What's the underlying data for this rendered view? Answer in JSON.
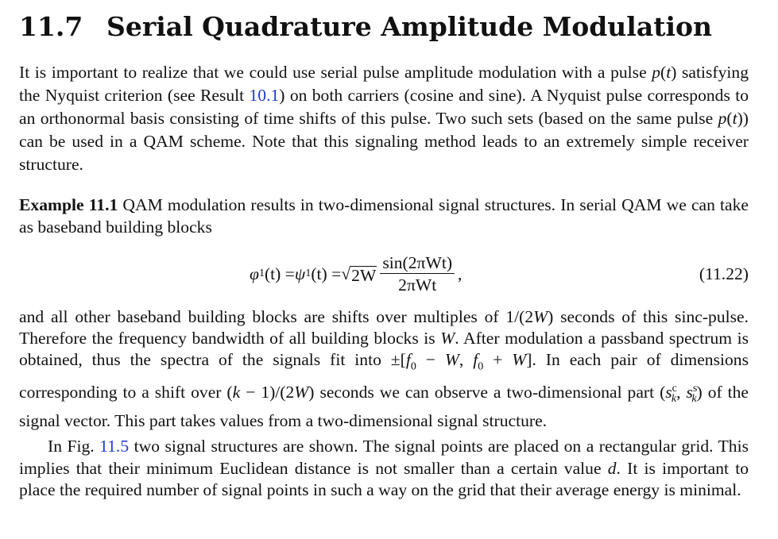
{
  "section": {
    "number": "11.7",
    "title": "Serial Quadrature Amplitude Modulation"
  },
  "para1": {
    "t1": "It is important to realize that we could use serial pulse amplitude modulation with a pulse ",
    "p": "p",
    "t2": "(",
    "t3": "t",
    "t4": ") satisfying the Nyquist criterion (see Result ",
    "ref": "10.1",
    "t5": ") on both carriers (cosine and sine). A Nyquist pulse corresponds to an orthonormal basis consisting of time shifts of this pulse. Two such sets (based on the same pulse ",
    "p2": "p",
    "t6": "(",
    "t7": "t",
    "t8": ")) can be used in a QAM scheme. Note that this signaling method leads to an extremely simple receiver structure."
  },
  "example": {
    "label": "Example 11.1",
    "text": " QAM modulation results in two-dimensional signal structures. In serial QAM we can take as baseband building blocks"
  },
  "equation": {
    "lhs": "φ",
    "lhs_sub": "1",
    "arg": "(t) = ",
    "psi": "ψ",
    "psi_sub": "1",
    "psi_arg": "(t) = ",
    "sqrt_sym": "√",
    "sqrt_arg": "2W",
    "numerator": "sin(2πWt)",
    "denominator": "2πWt",
    "trail": ",",
    "number": "(11.22)"
  },
  "para3": {
    "t1": "and all other baseband building blocks are shifts over multiples of 1/(2",
    "W1": "W",
    "t2": ") seconds of this sinc-pulse. Therefore the frequency bandwidth of all building blocks is ",
    "W2": "W",
    "t3": ". After modulation a passband spectrum is obtained, thus the spectra of the signals fit into ±[",
    "f0a": "f",
    "f0a_sub": "0",
    "t4": " − ",
    "W3": "W",
    "t5": ", ",
    "f0b": "f",
    "f0b_sub": "0",
    "t6": " + ",
    "W4": "W",
    "t7": "]. In each pair of dimensions corresponding to a shift over (",
    "k": "k",
    "t8": " − 1)/(2",
    "W5": "W",
    "t9": ") seconds we can observe a two-dimensional part (",
    "s1": "s",
    "s1_sup": "c",
    "s1_sub": "k",
    "t10": ", ",
    "s2": "s",
    "s2_sup": "s",
    "s2_sub": "k",
    "t11": ") of the signal vector. This part takes values from a two-dimensional signal structure."
  },
  "para4": {
    "t1": "In Fig. ",
    "ref": "11.5",
    "t2": " two signal structures are shown. The signal points are placed on a rectangular grid. This implies that their minimum Euclidean distance is not smaller than a certain value ",
    "d": "d",
    "t3": ". It is important to place the required number of signal points in such a way on the grid that their average energy is minimal."
  },
  "colors": {
    "text": "#111111",
    "link": "#1f3bd6",
    "background": "#ffffff"
  }
}
